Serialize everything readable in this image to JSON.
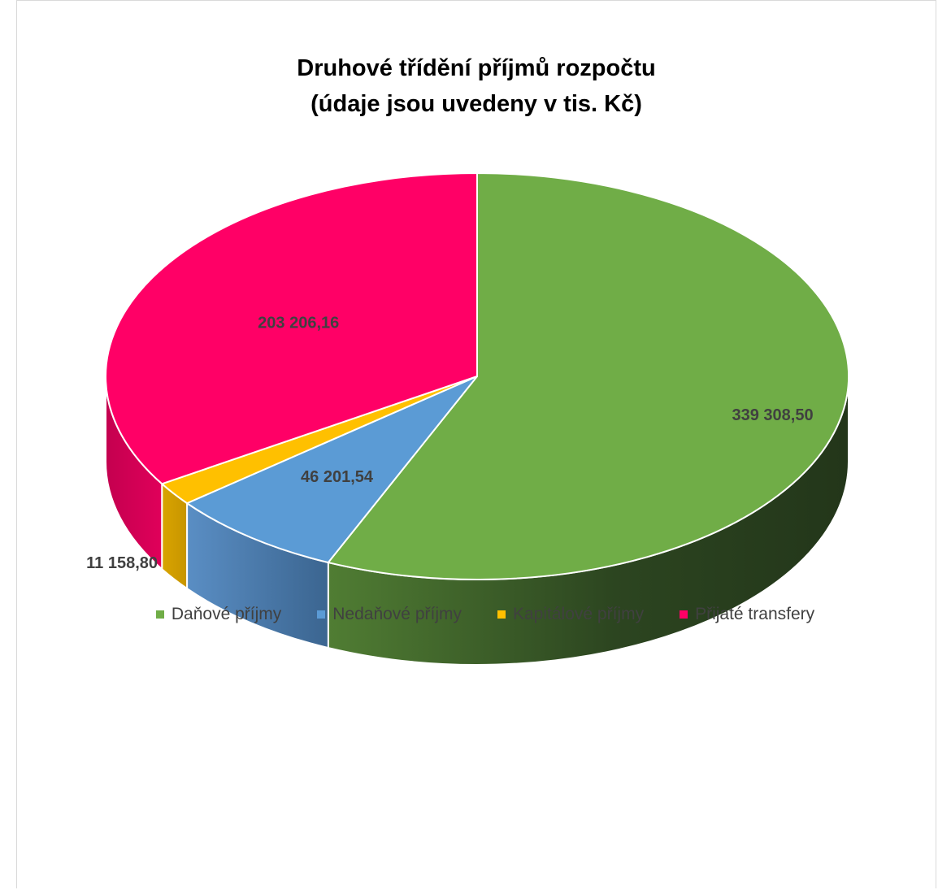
{
  "chart_data": {
    "type": "pie",
    "title": "Druhové třídění příjmů rozpočtu",
    "subtitle": "(údaje jsou uvedeny v tis. Kč)",
    "categories": [
      "Daňové příjmy",
      "Nedaňové příjmy",
      "Kapitálové příjmy",
      "Přijaté transfery"
    ],
    "values": [
      339308.5,
      46201.54,
      11158.8,
      203206.16
    ],
    "data_labels": [
      "339 308,50",
      "46 201,54",
      "11 158,80",
      "203 206,16"
    ],
    "colors": [
      "#70ad47",
      "#5b9bd5",
      "#ffc000",
      "#ff0066"
    ],
    "legend_position": "bottom",
    "style": "3d-pie"
  }
}
